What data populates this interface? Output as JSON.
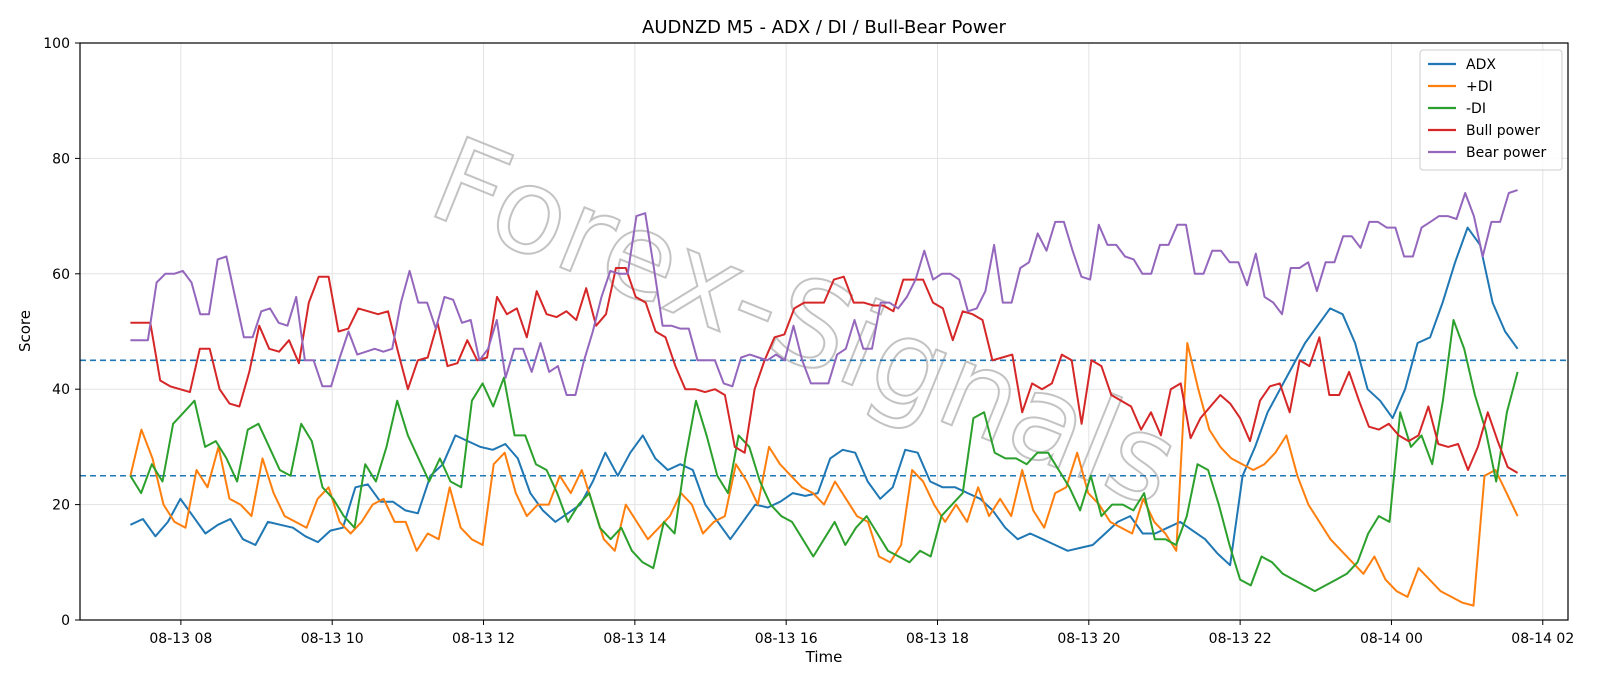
{
  "chart_data": {
    "type": "line",
    "title": "AUDNZD M5 - ADX / DI / Bull-Bear Power",
    "xlabel": "Time",
    "ylabel": "Score",
    "xlim": [
      "08-13 06:40",
      "08-14 02:20"
    ],
    "ylim": [
      0,
      100
    ],
    "x_tick_labels": [
      "08-13 08",
      "08-13 10",
      "08-13 12",
      "08-13 14",
      "08-13 16",
      "08-13 18",
      "08-13 20",
      "08-13 22",
      "08-14 00",
      "08-14 02"
    ],
    "y_tick_labels": [
      "0",
      "20",
      "40",
      "60",
      "80",
      "100"
    ],
    "grid": true,
    "legend_position": "top-right",
    "reference_lines": [
      45,
      25
    ],
    "x_start": "08-13 07:20",
    "x_end": "08-14 01:40",
    "series": [
      {
        "name": "ADX",
        "color": "#1f77b4",
        "values": [
          16.5,
          17.5,
          14.5,
          17,
          21,
          18,
          15,
          16.5,
          17.5,
          14,
          13,
          17,
          16.5,
          16,
          14.5,
          13.5,
          15.5,
          16,
          23,
          23.5,
          20.5,
          20.5,
          19,
          18.5,
          25,
          27,
          32,
          31,
          30,
          29.5,
          30.5,
          28,
          22,
          19,
          17,
          18.5,
          20,
          24,
          29,
          25,
          29,
          32,
          28,
          26,
          27,
          26,
          20,
          17,
          14,
          17,
          20,
          19.5,
          20.5,
          22,
          21.5,
          22,
          28,
          29.5,
          29,
          24,
          21,
          23,
          29.5,
          29,
          24,
          23,
          23,
          22,
          21,
          19,
          16,
          14,
          15,
          14,
          13,
          12,
          12.5,
          13,
          15,
          17,
          18,
          15,
          15,
          16,
          17,
          15.5,
          14,
          11.5,
          9.5,
          25,
          30,
          36,
          40,
          44,
          48,
          51,
          54,
          53,
          48,
          40,
          38,
          35,
          40,
          48,
          49,
          55,
          62,
          68,
          65,
          55,
          50,
          47
        ]
      },
      {
        "name": "+DI",
        "color": "#ff7f0e",
        "values": [
          25,
          33,
          28,
          20,
          17,
          16,
          26,
          23,
          30,
          21,
          20,
          18,
          28,
          22,
          18,
          17,
          16,
          21,
          23,
          17,
          15,
          17,
          20,
          21,
          17,
          17,
          12,
          15,
          14,
          23,
          16,
          14,
          13,
          27,
          29,
          22,
          18,
          20,
          20,
          25,
          22,
          26,
          20,
          14,
          12,
          20,
          17,
          14,
          16,
          18,
          22,
          20,
          15,
          17,
          18,
          27,
          24,
          20,
          30,
          27,
          25,
          23,
          22,
          20,
          24,
          21,
          18,
          17,
          11,
          10,
          13,
          26,
          24,
          20,
          17,
          20,
          17,
          23,
          18,
          21,
          18,
          26,
          19,
          16,
          22,
          23,
          29,
          22,
          20,
          17,
          16,
          15,
          21,
          17,
          15,
          12,
          48,
          40,
          33,
          30,
          28,
          27,
          26,
          27,
          29,
          32,
          25,
          20,
          17,
          14,
          12,
          10,
          8,
          11,
          7,
          5,
          4,
          9,
          7,
          5,
          4,
          3,
          2.5,
          25,
          26,
          22,
          18
        ]
      },
      {
        "name": "-DI",
        "color": "#2ca02c",
        "values": [
          25,
          22,
          27,
          24,
          34,
          36,
          38,
          30,
          31,
          28,
          24,
          33,
          34,
          30,
          26,
          25,
          34,
          31,
          23,
          21,
          18,
          16,
          27,
          24,
          30,
          38,
          32,
          28,
          24,
          28,
          24,
          23,
          38,
          41,
          37,
          42,
          32,
          32,
          27,
          26,
          22,
          17,
          20,
          22,
          16,
          14,
          16,
          12,
          10,
          9,
          17,
          15,
          28,
          38,
          32,
          25,
          22,
          32,
          30,
          24,
          20,
          18,
          17,
          14,
          11,
          14,
          17,
          13,
          16,
          18,
          15,
          12,
          11,
          10,
          12,
          11,
          18,
          20,
          22,
          35,
          36,
          29,
          28,
          28,
          27,
          29,
          29,
          26,
          23,
          19,
          25,
          18,
          20,
          20,
          19,
          22,
          14,
          14,
          13,
          18,
          27,
          26,
          20,
          13,
          7,
          6,
          11,
          10,
          8,
          7,
          6,
          5,
          6,
          7,
          8,
          10,
          15,
          18,
          17,
          36,
          30,
          32,
          27,
          38,
          52,
          47,
          39,
          33,
          24,
          36,
          43
        ]
      },
      {
        "name": "Bull power",
        "color": "#d62728",
        "values": [
          51.5,
          51.5,
          51.5,
          41.5,
          40.5,
          40,
          39.5,
          47,
          47,
          40,
          37.5,
          37,
          43,
          51,
          47,
          46.5,
          48.5,
          44.5,
          55,
          59.5,
          59.5,
          50,
          50.5,
          54,
          53.5,
          53,
          53.5,
          46.5,
          40,
          45,
          45.5,
          51.5,
          44,
          44.5,
          48.5,
          45,
          45.5,
          56,
          53,
          54,
          49,
          57,
          53,
          52.5,
          53.5,
          52,
          57.5,
          51,
          53,
          61,
          61,
          56,
          55,
          50,
          49,
          44,
          40,
          40,
          39.5,
          40,
          39,
          30,
          29,
          40,
          45,
          49,
          49.5,
          54,
          55,
          55,
          55,
          59,
          59.5,
          55,
          55,
          54.5,
          54.5,
          53.5,
          59,
          59,
          59,
          55,
          54,
          48.5,
          53.5,
          53,
          52,
          45,
          45.5,
          46,
          36,
          41,
          40,
          41,
          46,
          45,
          34,
          45,
          44,
          39,
          38,
          37,
          33,
          36,
          32,
          40,
          41,
          31.5,
          35,
          37,
          39,
          37.5,
          35,
          31,
          38,
          40.5,
          41,
          36,
          45,
          44,
          49,
          39,
          39,
          43,
          38,
          33.5,
          33,
          34,
          32,
          31,
          32,
          37,
          30.5,
          30,
          30.5,
          26,
          30,
          36,
          31,
          26.5,
          25.5
        ]
      },
      {
        "name": "Bear power",
        "color": "#9467bd",
        "values": [
          48.5,
          48.5,
          48.5,
          58.5,
          60,
          60,
          60.5,
          58.5,
          53,
          53,
          62.5,
          63,
          56,
          49,
          49,
          53.5,
          54,
          51.5,
          51,
          56,
          45,
          45,
          40.5,
          40.5,
          45.5,
          50,
          46,
          46.5,
          47,
          46.5,
          47,
          55,
          60.5,
          55,
          55,
          50.5,
          56,
          55.5,
          51.5,
          52,
          45,
          47,
          52,
          42,
          47,
          47,
          43,
          48,
          43,
          44,
          39,
          39,
          45,
          50,
          56,
          60.5,
          60,
          60,
          70,
          70.5,
          61,
          51,
          51,
          50.5,
          50.5,
          45,
          45,
          45,
          41,
          40.5,
          45.5,
          46,
          45.5,
          45,
          46,
          45,
          51,
          45,
          41,
          41,
          41,
          46,
          47,
          52,
          47,
          47,
          55,
          55,
          54,
          56,
          59,
          64,
          59,
          60,
          60,
          59,
          53.5,
          54,
          57,
          65,
          55,
          55,
          61,
          62,
          67,
          64,
          69,
          69,
          64,
          59.5,
          59,
          68.5,
          65,
          65,
          63,
          62.5,
          60,
          60,
          65,
          65,
          68.5,
          68.5,
          60,
          60,
          64,
          64,
          62,
          62,
          58,
          63.5,
          56,
          55,
          53,
          61,
          61,
          62,
          57,
          62,
          62,
          66.5,
          66.5,
          64.5,
          69,
          69,
          68,
          68,
          63,
          63,
          68,
          69,
          70,
          70,
          69.5,
          74,
          70,
          63,
          69,
          69,
          74,
          74.5
        ]
      }
    ]
  },
  "watermark": "Forex-Signals"
}
